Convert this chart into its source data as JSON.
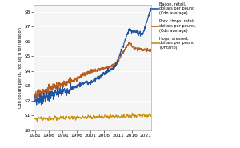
{
  "ylabel": "Cdn dollars per lb, not adj'd for inflation",
  "xlim": [
    1980.5,
    2023
  ],
  "ylim": [
    0,
    8.5
  ],
  "yticks": [
    0,
    1,
    2,
    3,
    4,
    5,
    6,
    7,
    8
  ],
  "ytick_labels": [
    "$0",
    "$1",
    "$2",
    "$3",
    "$4",
    "$5",
    "$6",
    "$7",
    "$8"
  ],
  "xticks": [
    1981,
    1986,
    1991,
    1996,
    2001,
    2006,
    2011,
    2016,
    2021
  ],
  "bg_color": "#e8e8e8",
  "plot_bg": "#f5f5f5",
  "bacon_color": "#2155a0",
  "pork_color": "#b85c20",
  "hogs_color": "#c9920a",
  "legend_labels": [
    "Bacon, retail,\ndollars per pound\n(Cdn average)",
    "Pork chops, retail,\ndollars per pound,\n(Cdn average)",
    "Hogs, dressed,\ndollars per pound\n(Ontario)"
  ],
  "figsize": [
    3.0,
    1.85
  ],
  "dpi": 100
}
